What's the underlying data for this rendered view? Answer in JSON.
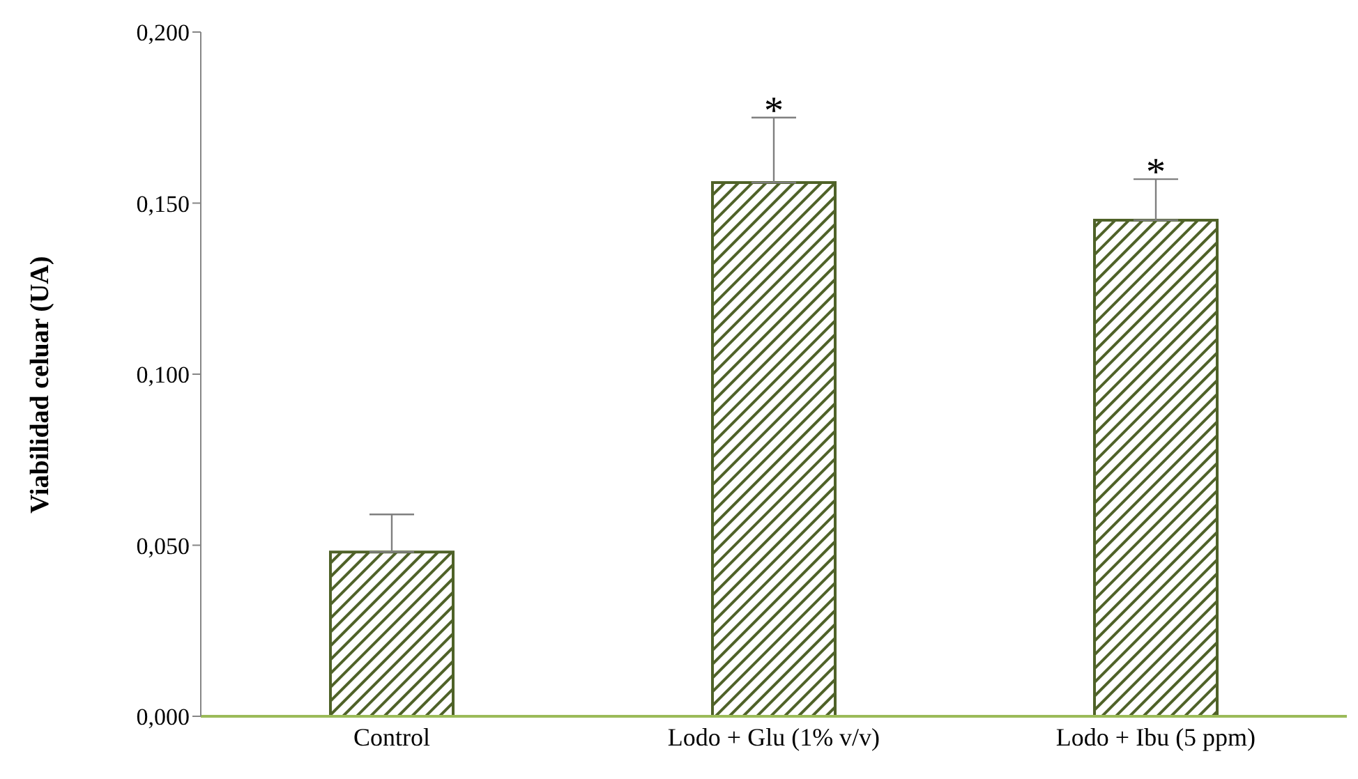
{
  "chart_data": {
    "type": "bar",
    "ylabel": "Viabilidad celuar (UA)",
    "categories": [
      "Control",
      "Lodo + Glu (1% v/v)",
      "Lodo + Ibu (5 ppm)"
    ],
    "values": [
      0.048,
      0.156,
      0.145
    ],
    "errors": [
      [
        0.048,
        0.059
      ],
      [
        0.156,
        0.175
      ],
      [
        0.145,
        0.157
      ]
    ],
    "color": "#4f6228",
    "ylim": [
      0,
      0.2
    ],
    "yticks": [
      {
        "value": 0,
        "label": "0,000"
      },
      {
        "value": 0.05,
        "label": "0,050"
      },
      {
        "value": 0.1,
        "label": "0,100"
      },
      {
        "value": 0.15,
        "label": "0,150"
      },
      {
        "value": 0.2,
        "label": "0,200"
      }
    ],
    "annotations": [
      {
        "text": "*",
        "x": "Lodo + Glu (1% v/v)",
        "y": 0.175
      },
      {
        "text": "*",
        "x": "Lodo + Ibu (5 ppm)",
        "y": 0.157
      }
    ],
    "grid": false
  }
}
